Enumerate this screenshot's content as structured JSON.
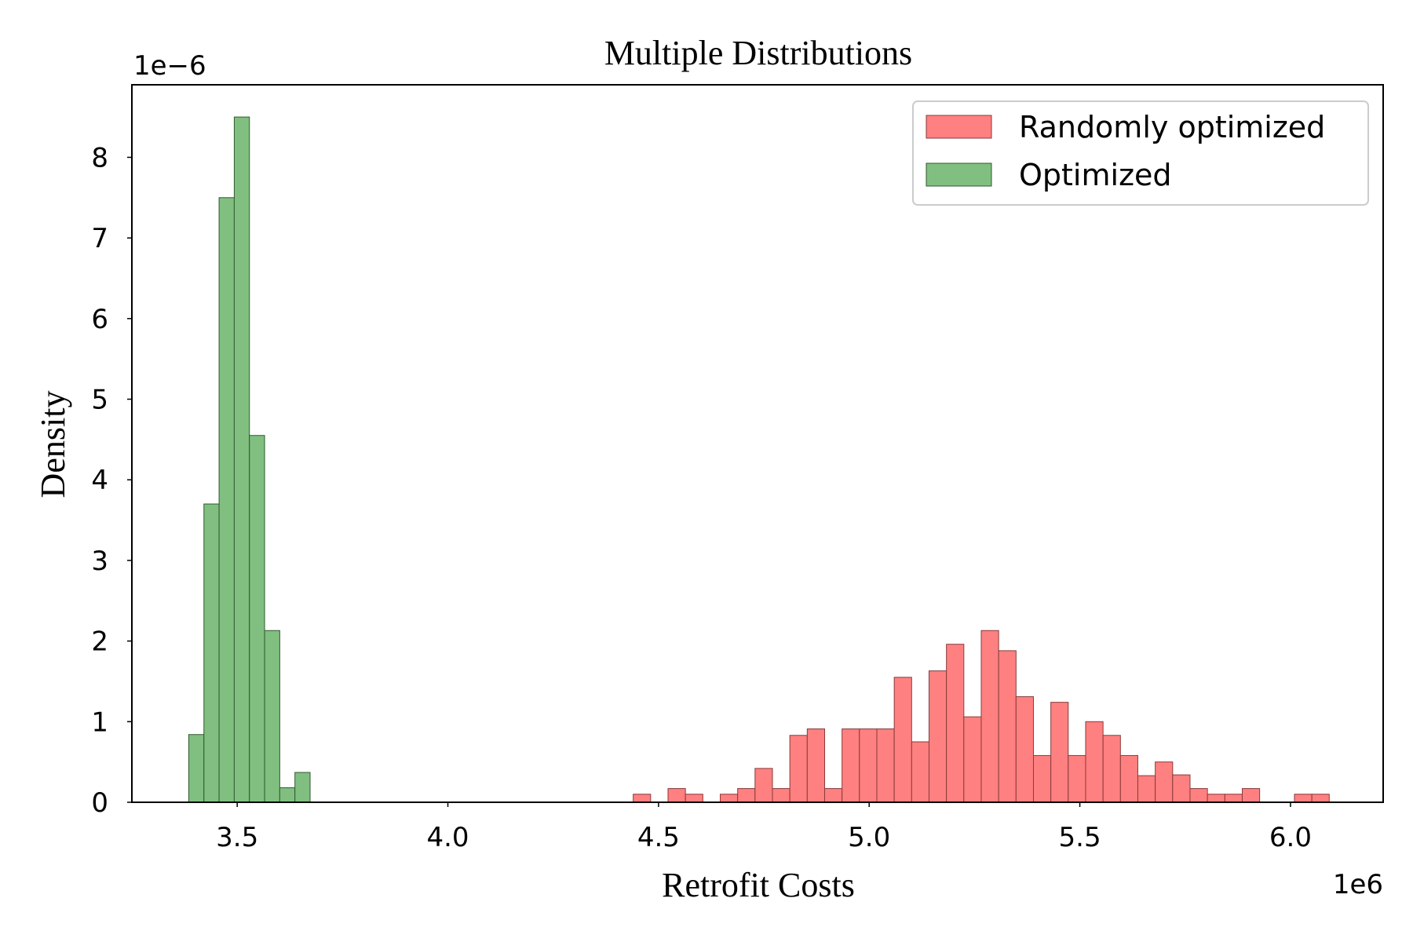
{
  "chart_data": {
    "type": "bar",
    "title": "Multiple Distributions",
    "xlabel": "Retrofit Costs",
    "ylabel": "Density",
    "x_offset_label": "1e6",
    "y_offset_label": "1e−6",
    "xlim": [
      3.25,
      6.22
    ],
    "ylim": [
      0,
      8.9
    ],
    "x_ticks": [
      3.5,
      4.0,
      4.5,
      5.0,
      5.5,
      6.0
    ],
    "x_tick_labels": [
      "3.5",
      "4.0",
      "4.5",
      "5.0",
      "5.5",
      "6.0"
    ],
    "y_ticks": [
      0,
      1,
      2,
      3,
      4,
      5,
      6,
      7,
      8
    ],
    "y_tick_labels": [
      "0",
      "1",
      "2",
      "3",
      "4",
      "5",
      "6",
      "7",
      "8"
    ],
    "grid": false,
    "legend_position": "top-right",
    "series": [
      {
        "name": "Randomly optimized",
        "color": "#ff8080",
        "edge_color": "#8a3a3a",
        "bin_start": 4.44,
        "bin_width": 0.0413,
        "values": [
          0.1,
          0,
          0.17,
          0.1,
          0,
          0.1,
          0.17,
          0.42,
          0.17,
          0.83,
          0.91,
          0.17,
          0.91,
          0.91,
          0.91,
          1.55,
          0.75,
          1.63,
          1.96,
          1.06,
          2.13,
          1.88,
          1.31,
          0.58,
          1.24,
          0.58,
          1.0,
          0.83,
          0.58,
          0.33,
          0.5,
          0.34,
          0.17,
          0.1,
          0.1,
          0.17,
          0,
          0,
          0.1,
          0.1
        ]
      },
      {
        "name": "Optimized",
        "color": "#80bf80",
        "edge_color": "#2f5a2f",
        "bin_start": 3.385,
        "bin_width": 0.036,
        "values": [
          0.84,
          3.7,
          7.5,
          8.5,
          4.55,
          2.13,
          0.18,
          0.37
        ]
      }
    ]
  }
}
